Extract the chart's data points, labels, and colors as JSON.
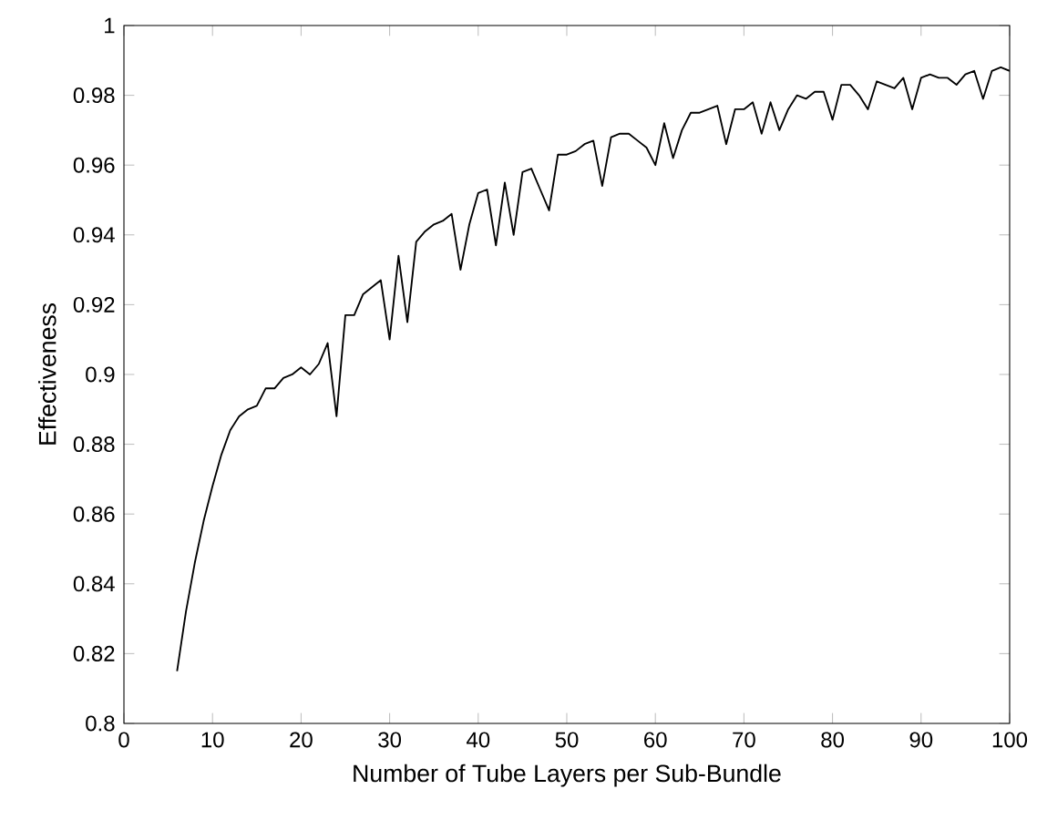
{
  "chart_data": {
    "type": "line",
    "xlabel": "Number of Tube Layers per Sub-Bundle",
    "ylabel": "Effectiveness",
    "xlim": [
      0,
      100
    ],
    "ylim": [
      0.8,
      1
    ],
    "xticks": [
      0,
      10,
      20,
      30,
      40,
      50,
      60,
      70,
      80,
      90,
      100
    ],
    "yticks": [
      0.8,
      0.82,
      0.84,
      0.86,
      0.88,
      0.9,
      0.92,
      0.94,
      0.96,
      0.98,
      1
    ],
    "grid": false,
    "marker": "none",
    "line_style": "solid",
    "x": [
      6,
      7,
      8,
      9,
      10,
      11,
      12,
      13,
      14,
      15,
      16,
      17,
      18,
      19,
      20,
      21,
      22,
      23,
      24,
      25,
      26,
      27,
      28,
      29,
      30,
      31,
      32,
      33,
      34,
      35,
      36,
      37,
      38,
      39,
      40,
      41,
      42,
      43,
      44,
      45,
      46,
      47,
      48,
      49,
      50,
      51,
      52,
      53,
      54,
      55,
      56,
      57,
      58,
      59,
      60,
      61,
      62,
      63,
      64,
      65,
      66,
      67,
      68,
      69,
      70,
      71,
      72,
      73,
      74,
      75,
      76,
      77,
      78,
      79,
      80,
      81,
      82,
      83,
      84,
      85,
      86,
      87,
      88,
      89,
      90,
      91,
      92,
      93,
      94,
      95,
      96,
      97,
      98,
      99,
      100
    ],
    "series": [
      {
        "color": "#000000",
        "values": [
          0.815,
          0.832,
          0.846,
          0.858,
          0.868,
          0.877,
          0.884,
          0.888,
          0.89,
          0.891,
          0.896,
          0.896,
          0.899,
          0.9,
          0.902,
          0.9,
          0.903,
          0.909,
          0.888,
          0.917,
          0.917,
          0.923,
          0.925,
          0.927,
          0.91,
          0.934,
          0.915,
          0.938,
          0.941,
          0.943,
          0.944,
          0.946,
          0.93,
          0.943,
          0.952,
          0.953,
          0.937,
          0.955,
          0.94,
          0.958,
          0.959,
          0.953,
          0.947,
          0.963,
          0.963,
          0.964,
          0.966,
          0.967,
          0.954,
          0.968,
          0.969,
          0.969,
          0.967,
          0.965,
          0.96,
          0.972,
          0.962,
          0.97,
          0.975,
          0.975,
          0.976,
          0.977,
          0.966,
          0.976,
          0.976,
          0.978,
          0.969,
          0.978,
          0.97,
          0.976,
          0.98,
          0.979,
          0.981,
          0.981,
          0.973,
          0.983,
          0.983,
          0.98,
          0.976,
          0.984,
          0.983,
          0.982,
          0.985,
          0.976,
          0.985,
          0.986,
          0.985,
          0.985,
          0.983,
          0.986,
          0.987,
          0.979,
          0.987,
          0.988,
          0.987
        ]
      }
    ]
  }
}
